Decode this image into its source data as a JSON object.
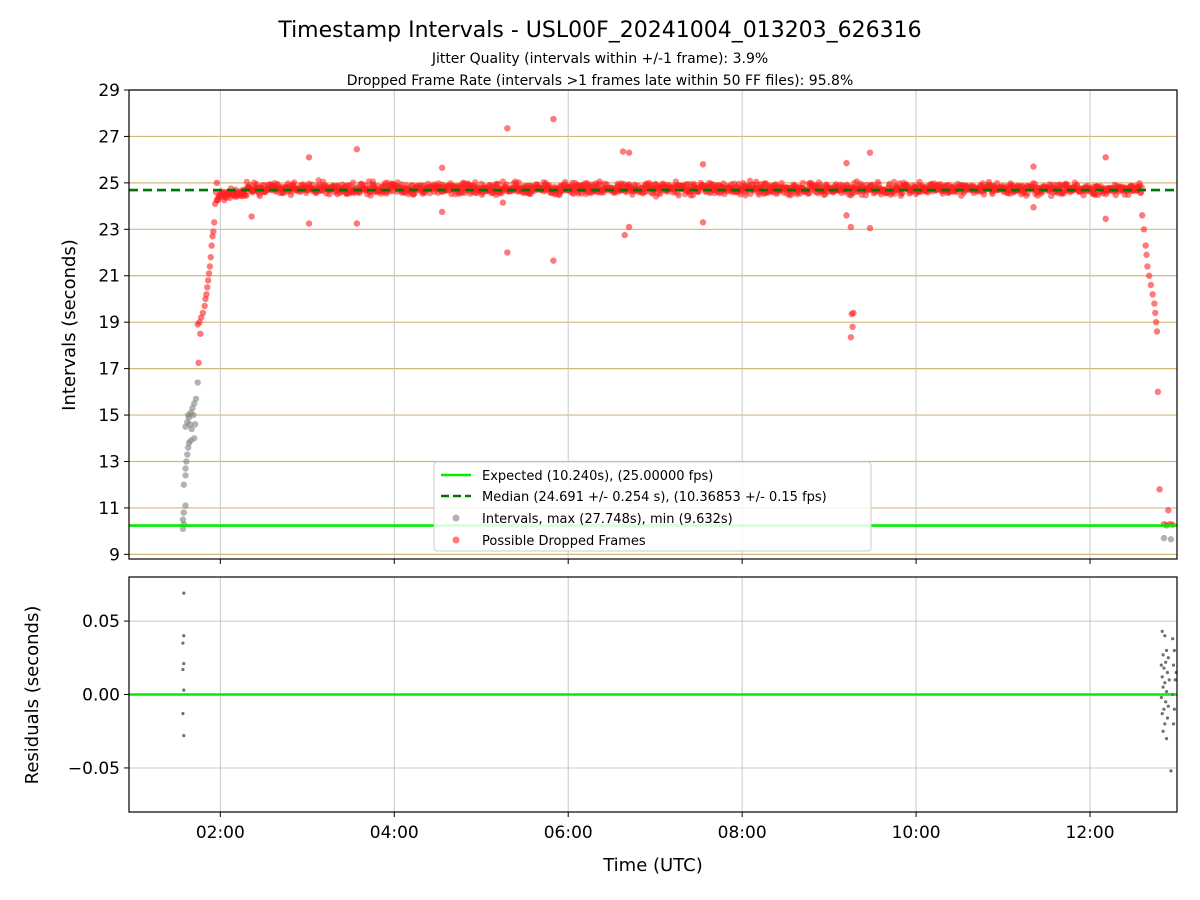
{
  "chart_data": [
    {
      "type": "scatter",
      "title": "Timestamp Intervals - USL00F_20241004_013203_626316",
      "subtitle_lines": [
        "Jitter Quality (intervals within +/-1 frame): 3.9%",
        "Dropped Frame Rate (intervals >1 frames late within 50 FF files): 95.8%"
      ],
      "xlabel": "",
      "ylabel": "Intervals (seconds)",
      "xlim_hours": [
        0.95,
        13.0
      ],
      "ylim": [
        8.8,
        29
      ],
      "yticks": [
        9,
        11,
        13,
        15,
        17,
        19,
        21,
        23,
        25,
        27,
        29
      ],
      "x_ticks": [
        {
          "hour": 2,
          "label": "02:00"
        },
        {
          "hour": 4,
          "label": "04:00"
        },
        {
          "hour": 6,
          "label": "06:00"
        },
        {
          "hour": 8,
          "label": "08:00"
        },
        {
          "hour": 10,
          "label": "10:00"
        },
        {
          "hour": 12,
          "label": "12:00"
        }
      ],
      "grid": {
        "y_color": "#d2b97a",
        "x_color": "#c8c8c8"
      },
      "lines": [
        {
          "name": "expected",
          "y": 10.24,
          "color": "#00ee00",
          "style": "solid"
        },
        {
          "name": "median",
          "y": 24.691,
          "color": "#007700",
          "style": "dashed"
        }
      ],
      "legend": {
        "placement": "lower-center",
        "entries": [
          {
            "label": "Expected (10.240s), (25.00000 fps)",
            "kind": "line",
            "color": "#00ee00"
          },
          {
            "label": "Median (24.691 +/- 0.254 s), (10.36853 +/- 0.15 fps)",
            "kind": "dashed",
            "color": "#007700"
          },
          {
            "label": "Intervals, max (27.748s), min (9.632s)",
            "kind": "marker",
            "color": "#808080"
          },
          {
            "label": "Possible Dropped Frames",
            "kind": "marker",
            "color": "#ff2020"
          }
        ]
      },
      "series": [
        {
          "name": "Intervals",
          "color": "#808080",
          "points": [
            [
              1.57,
              10.1
            ],
            [
              1.58,
              10.3
            ],
            [
              1.57,
              10.5
            ],
            [
              1.58,
              10.8
            ],
            [
              1.6,
              11.1
            ],
            [
              1.58,
              12.0
            ],
            [
              1.6,
              12.4
            ],
            [
              1.6,
              12.7
            ],
            [
              1.61,
              13.0
            ],
            [
              1.62,
              13.3
            ],
            [
              1.63,
              13.6
            ],
            [
              1.64,
              13.8
            ],
            [
              1.66,
              13.9
            ],
            [
              1.7,
              14.0
            ],
            [
              1.6,
              14.5
            ],
            [
              1.62,
              14.7
            ],
            [
              1.64,
              14.9
            ],
            [
              1.66,
              15.1
            ],
            [
              1.68,
              15.3
            ],
            [
              1.7,
              15.5
            ],
            [
              1.72,
              15.7
            ],
            [
              1.74,
              16.4
            ],
            [
              1.63,
              15.0
            ],
            [
              1.65,
              14.6
            ],
            [
              1.67,
              14.4
            ],
            [
              1.69,
              15.0
            ],
            [
              1.71,
              14.6
            ],
            [
              12.85,
              9.7
            ],
            [
              12.93,
              9.65
            ]
          ]
        },
        {
          "name": "Possible Dropped Frames",
          "color": "#ff2020",
          "points": [
            [
              1.75,
              17.25
            ],
            [
              1.77,
              18.5
            ],
            [
              1.74,
              18.9
            ],
            [
              1.76,
              19.0
            ],
            [
              1.78,
              19.2
            ],
            [
              1.8,
              19.4
            ],
            [
              1.82,
              19.7
            ],
            [
              1.83,
              20.0
            ],
            [
              1.84,
              20.2
            ],
            [
              1.85,
              20.5
            ],
            [
              1.86,
              20.8
            ],
            [
              1.87,
              21.1
            ],
            [
              1.88,
              21.4
            ],
            [
              1.89,
              21.8
            ],
            [
              1.9,
              22.3
            ],
            [
              1.91,
              22.7
            ],
            [
              1.92,
              22.9
            ],
            [
              1.93,
              23.3
            ],
            [
              1.94,
              24.1
            ],
            [
              1.95,
              24.6
            ],
            [
              1.96,
              25.0
            ],
            [
              2.36,
              23.55
            ],
            [
              3.02,
              26.1
            ],
            [
              3.02,
              23.25
            ],
            [
              3.57,
              26.45
            ],
            [
              3.57,
              23.25
            ],
            [
              4.55,
              25.65
            ],
            [
              4.55,
              23.75
            ],
            [
              5.3,
              27.35
            ],
            [
              5.3,
              22.0
            ],
            [
              5.25,
              24.15
            ],
            [
              5.83,
              27.748
            ],
            [
              5.83,
              21.65
            ],
            [
              6.63,
              26.35
            ],
            [
              6.7,
              26.3
            ],
            [
              6.65,
              22.75
            ],
            [
              6.7,
              23.1
            ],
            [
              7.55,
              25.8
            ],
            [
              7.55,
              23.3
            ],
            [
              9.2,
              25.85
            ],
            [
              9.2,
              23.6
            ],
            [
              9.25,
              23.1
            ],
            [
              9.28,
              19.4
            ],
            [
              9.26,
              19.35
            ],
            [
              9.27,
              18.8
            ],
            [
              9.25,
              18.35
            ],
            [
              9.47,
              26.3
            ],
            [
              9.47,
              23.05
            ],
            [
              11.35,
              25.7
            ],
            [
              11.35,
              23.95
            ],
            [
              12.18,
              26.1
            ],
            [
              12.18,
              23.45
            ],
            [
              12.6,
              23.6
            ],
            [
              12.62,
              23.0
            ],
            [
              12.64,
              22.3
            ],
            [
              12.65,
              21.9
            ],
            [
              12.66,
              21.4
            ],
            [
              12.68,
              21.0
            ],
            [
              12.7,
              20.6
            ],
            [
              12.72,
              20.2
            ],
            [
              12.74,
              19.8
            ],
            [
              12.75,
              19.4
            ],
            [
              12.76,
              19.0
            ],
            [
              12.77,
              18.6
            ],
            [
              12.78,
              16.0
            ],
            [
              12.8,
              11.8
            ],
            [
              12.9,
              10.9
            ],
            [
              12.85,
              10.3
            ],
            [
              12.88,
              10.25
            ],
            [
              12.92,
              10.3
            ],
            [
              12.95,
              10.28
            ]
          ],
          "dense_band": {
            "x_start": 1.96,
            "x_end": 12.6,
            "y_center": 24.75,
            "spread": 0.25
          }
        }
      ]
    },
    {
      "type": "scatter",
      "xlabel": "Time (UTC)",
      "ylabel": "Residuals (seconds)",
      "xlim_hours": [
        0.95,
        13.0
      ],
      "ylim": [
        -0.08,
        0.08
      ],
      "yticks": [
        {
          "value": 0.05,
          "label": "0.05"
        },
        {
          "value": 0.0,
          "label": "0.00"
        },
        {
          "value": -0.05,
          "label": "−0.05"
        }
      ],
      "x_ticks": [
        {
          "hour": 2,
          "label": "02:00"
        },
        {
          "hour": 4,
          "label": "04:00"
        },
        {
          "hour": 6,
          "label": "06:00"
        },
        {
          "hour": 8,
          "label": "08:00"
        },
        {
          "hour": 10,
          "label": "10:00"
        },
        {
          "hour": 12,
          "label": "12:00"
        }
      ],
      "lines": [
        {
          "name": "zero",
          "y": 0.0,
          "color": "#00ee00",
          "style": "solid"
        }
      ],
      "series": [
        {
          "name": "Residuals",
          "color": "#707070",
          "points": [
            [
              1.58,
              0.069
            ],
            [
              1.58,
              0.04
            ],
            [
              1.57,
              0.035
            ],
            [
              1.58,
              0.021
            ],
            [
              1.57,
              0.017
            ],
            [
              1.58,
              0.003
            ],
            [
              1.57,
              -0.013
            ],
            [
              1.58,
              -0.028
            ],
            [
              12.83,
              0.043
            ],
            [
              12.86,
              0.04
            ],
            [
              12.88,
              0.03
            ],
            [
              12.84,
              0.027
            ],
            [
              12.9,
              0.025
            ],
            [
              12.87,
              0.022
            ],
            [
              12.82,
              0.02
            ],
            [
              12.85,
              0.018
            ],
            [
              12.89,
              0.015
            ],
            [
              12.83,
              0.012
            ],
            [
              12.91,
              0.01
            ],
            [
              12.86,
              0.008
            ],
            [
              12.84,
              0.005
            ],
            [
              12.88,
              0.002
            ],
            [
              12.82,
              -0.002
            ],
            [
              12.87,
              -0.005
            ],
            [
              12.9,
              -0.008
            ],
            [
              12.85,
              -0.01
            ],
            [
              12.83,
              -0.013
            ],
            [
              12.89,
              -0.016
            ],
            [
              12.86,
              -0.02
            ],
            [
              12.84,
              -0.025
            ],
            [
              12.88,
              -0.03
            ],
            [
              12.93,
              -0.052
            ],
            [
              12.95,
              0.038
            ],
            [
              12.97,
              0.03
            ],
            [
              12.96,
              0.02
            ],
            [
              12.98,
              0.01
            ],
            [
              12.95,
              0.0
            ],
            [
              12.97,
              -0.01
            ],
            [
              12.96,
              -0.02
            ],
            [
              12.99,
              0.015
            ]
          ]
        }
      ]
    }
  ]
}
